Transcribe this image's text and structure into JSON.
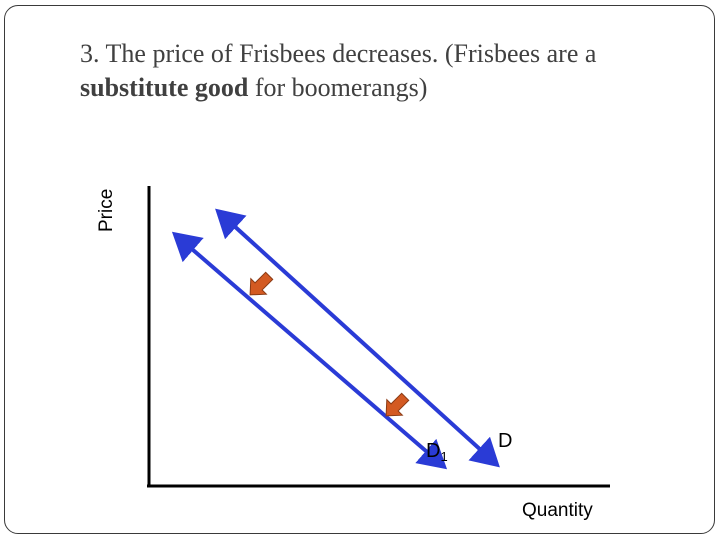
{
  "title": {
    "line1": "3. The price of Frisbees decreases. (Frisbees are a",
    "bold": "substitute good",
    "rest": " for boomerangs)"
  },
  "axes": {
    "y_label": "Price",
    "x_label": "Quantity"
  },
  "curves": {
    "original": "D",
    "new_base": "D",
    "new_sub": "1"
  },
  "colors": {
    "curve": "#2a3bd6",
    "shift_arrow": "#d35a22",
    "axis": "#000000"
  },
  "shift_direction": "left"
}
